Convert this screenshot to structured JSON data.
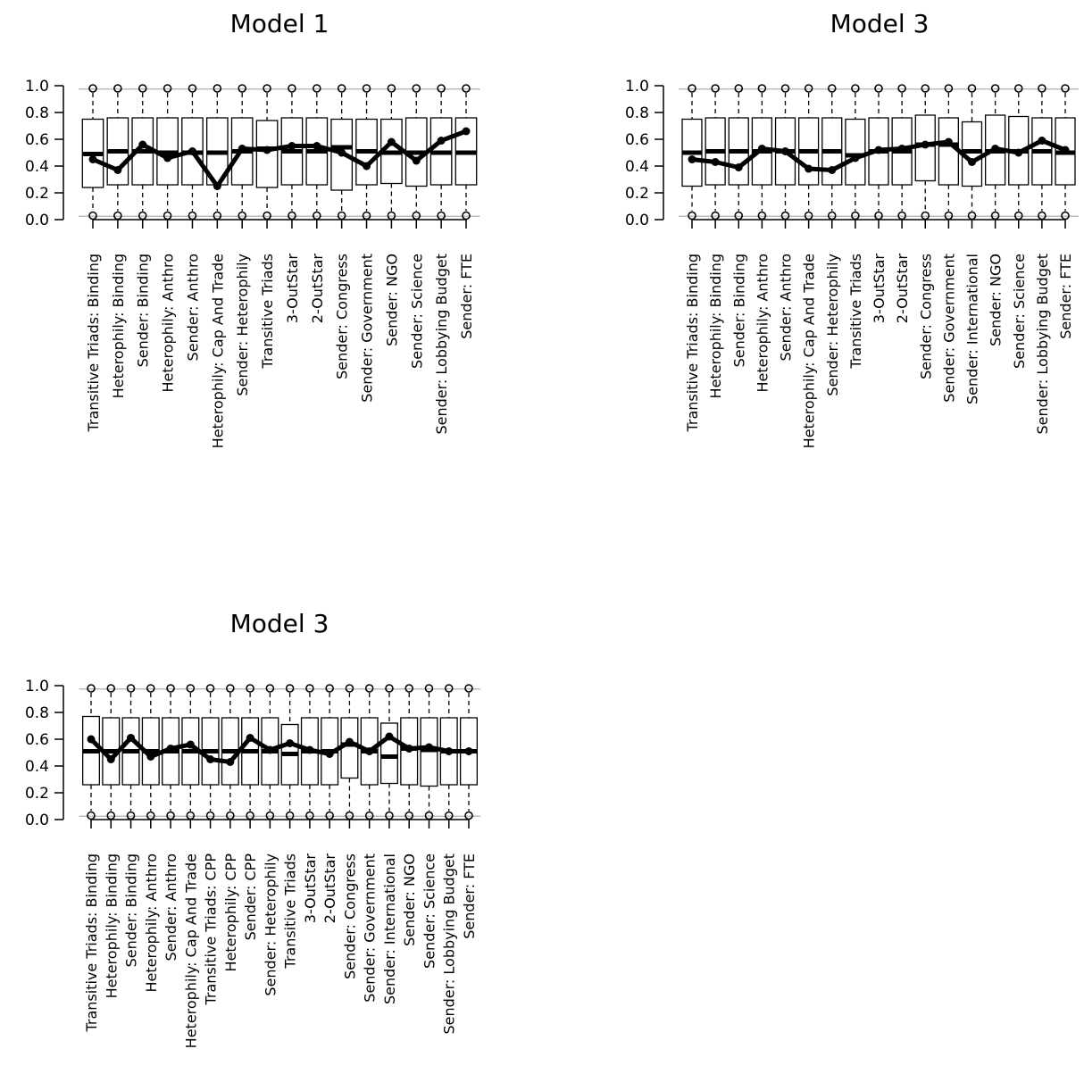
{
  "chart_data": [
    {
      "type": "boxplot",
      "title": "Model 1",
      "xlabel": "",
      "ylabel": "",
      "ylim": [
        0,
        1
      ],
      "yticks": [
        "0.0",
        "0.2",
        "0.4",
        "0.6",
        "0.8",
        "1.0"
      ],
      "reference_lines": [
        0.975,
        0.025
      ],
      "grid": false,
      "categories": [
        "Transitive Triads: Binding",
        "Heterophily: Binding",
        "Sender: Binding",
        "Heterophily: Anthro",
        "Sender: Anthro",
        "Heterophily: Cap And Trade",
        "Sender: Heterophily",
        "Transitive Triads",
        "3-OutStar",
        "2-OutStar",
        "Sender: Congress",
        "Sender: Government",
        "Sender: NGO",
        "Sender: Science",
        "Sender: Lobbying Budget",
        "Sender: FTE"
      ],
      "boxes": [
        {
          "q1": 0.24,
          "median": 0.49,
          "q3": 0.75
        },
        {
          "q1": 0.26,
          "median": 0.51,
          "q3": 0.76
        },
        {
          "q1": 0.26,
          "median": 0.51,
          "q3": 0.76
        },
        {
          "q1": 0.26,
          "median": 0.5,
          "q3": 0.76
        },
        {
          "q1": 0.26,
          "median": 0.5,
          "q3": 0.76
        },
        {
          "q1": 0.26,
          "median": 0.5,
          "q3": 0.76
        },
        {
          "q1": 0.26,
          "median": 0.51,
          "q3": 0.76
        },
        {
          "q1": 0.24,
          "median": 0.53,
          "q3": 0.74
        },
        {
          "q1": 0.26,
          "median": 0.51,
          "q3": 0.76
        },
        {
          "q1": 0.26,
          "median": 0.51,
          "q3": 0.76
        },
        {
          "q1": 0.22,
          "median": 0.54,
          "q3": 0.75
        },
        {
          "q1": 0.26,
          "median": 0.51,
          "q3": 0.75
        },
        {
          "q1": 0.27,
          "median": 0.5,
          "q3": 0.75
        },
        {
          "q1": 0.25,
          "median": 0.5,
          "q3": 0.76
        },
        {
          "q1": 0.26,
          "median": 0.5,
          "q3": 0.76
        },
        {
          "q1": 0.26,
          "median": 0.5,
          "q3": 0.76
        }
      ],
      "observed": [
        0.45,
        0.37,
        0.56,
        0.46,
        0.51,
        0.25,
        0.53,
        0.52,
        0.55,
        0.55,
        0.5,
        0.4,
        0.58,
        0.44,
        0.59,
        0.66
      ],
      "outliers_low": [
        0.03,
        0.03,
        0.03,
        0.03,
        0.03,
        0.03,
        0.03,
        0.03,
        0.03,
        0.03,
        0.03,
        0.03,
        0.03,
        0.03,
        0.03,
        0.03
      ],
      "outliers_high": [
        0.98,
        0.98,
        0.98,
        0.98,
        0.98,
        0.98,
        0.98,
        0.98,
        0.98,
        0.98,
        0.98,
        0.98,
        0.98,
        0.98,
        0.98,
        0.98
      ]
    },
    {
      "type": "boxplot",
      "title": "Model 3",
      "xlabel": "",
      "ylabel": "",
      "ylim": [
        0,
        1
      ],
      "yticks": [
        "0.0",
        "0.2",
        "0.4",
        "0.6",
        "0.8",
        "1.0"
      ],
      "reference_lines": [
        0.975,
        0.025
      ],
      "grid": false,
      "categories": [
        "Transitive Triads: Binding",
        "Heterophily: Binding",
        "Sender: Binding",
        "Heterophily: Anthro",
        "Sender: Anthro",
        "Heterophily: Cap And Trade",
        "Sender: Heterophily",
        "Transitive Triads",
        "3-OutStar",
        "2-OutStar",
        "Sender: Congress",
        "Sender: Government",
        "Sender: International",
        "Sender: NGO",
        "Sender: Science",
        "Sender: Lobbying Budget",
        "Sender: FTE"
      ],
      "boxes": [
        {
          "q1": 0.25,
          "median": 0.5,
          "q3": 0.75
        },
        {
          "q1": 0.26,
          "median": 0.51,
          "q3": 0.76
        },
        {
          "q1": 0.26,
          "median": 0.51,
          "q3": 0.76
        },
        {
          "q1": 0.26,
          "median": 0.51,
          "q3": 0.76
        },
        {
          "q1": 0.26,
          "median": 0.51,
          "q3": 0.76
        },
        {
          "q1": 0.26,
          "median": 0.51,
          "q3": 0.76
        },
        {
          "q1": 0.26,
          "median": 0.51,
          "q3": 0.76
        },
        {
          "q1": 0.26,
          "median": 0.48,
          "q3": 0.75
        },
        {
          "q1": 0.26,
          "median": 0.51,
          "q3": 0.76
        },
        {
          "q1": 0.26,
          "median": 0.51,
          "q3": 0.76
        },
        {
          "q1": 0.29,
          "median": 0.56,
          "q3": 0.78
        },
        {
          "q1": 0.26,
          "median": 0.56,
          "q3": 0.76
        },
        {
          "q1": 0.25,
          "median": 0.51,
          "q3": 0.73
        },
        {
          "q1": 0.26,
          "median": 0.51,
          "q3": 0.78
        },
        {
          "q1": 0.26,
          "median": 0.51,
          "q3": 0.77
        },
        {
          "q1": 0.26,
          "median": 0.51,
          "q3": 0.76
        },
        {
          "q1": 0.26,
          "median": 0.5,
          "q3": 0.76
        }
      ],
      "observed": [
        0.45,
        0.43,
        0.39,
        0.53,
        0.51,
        0.38,
        0.37,
        0.46,
        0.52,
        0.53,
        0.56,
        0.58,
        0.43,
        0.53,
        0.5,
        0.59,
        0.52
      ],
      "outliers_low": [
        0.03,
        0.03,
        0.03,
        0.03,
        0.03,
        0.03,
        0.03,
        0.03,
        0.03,
        0.03,
        0.03,
        0.03,
        0.03,
        0.03,
        0.03,
        0.03,
        0.03
      ],
      "outliers_high": [
        0.98,
        0.98,
        0.98,
        0.98,
        0.98,
        0.98,
        0.98,
        0.98,
        0.98,
        0.98,
        0.98,
        0.98,
        0.98,
        0.98,
        0.98,
        0.98,
        0.98
      ]
    },
    {
      "type": "boxplot",
      "title": "Model 3",
      "xlabel": "",
      "ylabel": "",
      "ylim": [
        0,
        1
      ],
      "yticks": [
        "0.0",
        "0.2",
        "0.4",
        "0.6",
        "0.8",
        "1.0"
      ],
      "reference_lines": [
        0.975,
        0.025
      ],
      "grid": false,
      "categories": [
        "Transitive Triads: Binding",
        "Heterophily: Binding",
        "Sender: Binding",
        "Heterophily: Anthro",
        "Sender: Anthro",
        "Heterophily: Cap And Trade",
        "Transitive Triads: CPP",
        "Heterophily: CPP",
        "Sender: CPP",
        "Sender: Heterophily",
        "Transitive Triads",
        "3-OutStar",
        "2-OutStar",
        "Sender: Congress",
        "Sender: Government",
        "Sender: International",
        "Sender: NGO",
        "Sender: Science",
        "Sender: Lobbying Budget",
        "Sender: FTE"
      ],
      "boxes": [
        {
          "q1": 0.26,
          "median": 0.51,
          "q3": 0.77
        },
        {
          "q1": 0.26,
          "median": 0.51,
          "q3": 0.76
        },
        {
          "q1": 0.26,
          "median": 0.51,
          "q3": 0.76
        },
        {
          "q1": 0.26,
          "median": 0.51,
          "q3": 0.76
        },
        {
          "q1": 0.26,
          "median": 0.51,
          "q3": 0.76
        },
        {
          "q1": 0.26,
          "median": 0.51,
          "q3": 0.76
        },
        {
          "q1": 0.26,
          "median": 0.51,
          "q3": 0.76
        },
        {
          "q1": 0.26,
          "median": 0.51,
          "q3": 0.76
        },
        {
          "q1": 0.26,
          "median": 0.51,
          "q3": 0.76
        },
        {
          "q1": 0.26,
          "median": 0.51,
          "q3": 0.76
        },
        {
          "q1": 0.26,
          "median": 0.49,
          "q3": 0.71
        },
        {
          "q1": 0.26,
          "median": 0.51,
          "q3": 0.76
        },
        {
          "q1": 0.26,
          "median": 0.51,
          "q3": 0.76
        },
        {
          "q1": 0.31,
          "median": 0.56,
          "q3": 0.76
        },
        {
          "q1": 0.26,
          "median": 0.51,
          "q3": 0.76
        },
        {
          "q1": 0.27,
          "median": 0.47,
          "q3": 0.72
        },
        {
          "q1": 0.26,
          "median": 0.53,
          "q3": 0.76
        },
        {
          "q1": 0.25,
          "median": 0.52,
          "q3": 0.76
        },
        {
          "q1": 0.26,
          "median": 0.51,
          "q3": 0.76
        },
        {
          "q1": 0.26,
          "median": 0.51,
          "q3": 0.76
        }
      ],
      "observed": [
        0.6,
        0.45,
        0.61,
        0.47,
        0.53,
        0.56,
        0.45,
        0.43,
        0.61,
        0.52,
        0.57,
        0.52,
        0.49,
        0.58,
        0.51,
        0.62,
        0.53,
        0.54,
        0.51,
        0.51
      ],
      "outliers_low": [
        0.03,
        0.03,
        0.03,
        0.03,
        0.03,
        0.03,
        0.03,
        0.03,
        0.03,
        0.03,
        0.03,
        0.03,
        0.03,
        0.03,
        0.03,
        0.03,
        0.03,
        0.03,
        0.03,
        0.03
      ],
      "outliers_high": [
        0.98,
        0.98,
        0.98,
        0.98,
        0.98,
        0.98,
        0.98,
        0.98,
        0.98,
        0.98,
        0.98,
        0.98,
        0.98,
        0.98,
        0.98,
        0.98,
        0.98,
        0.98,
        0.98,
        0.98
      ]
    }
  ]
}
